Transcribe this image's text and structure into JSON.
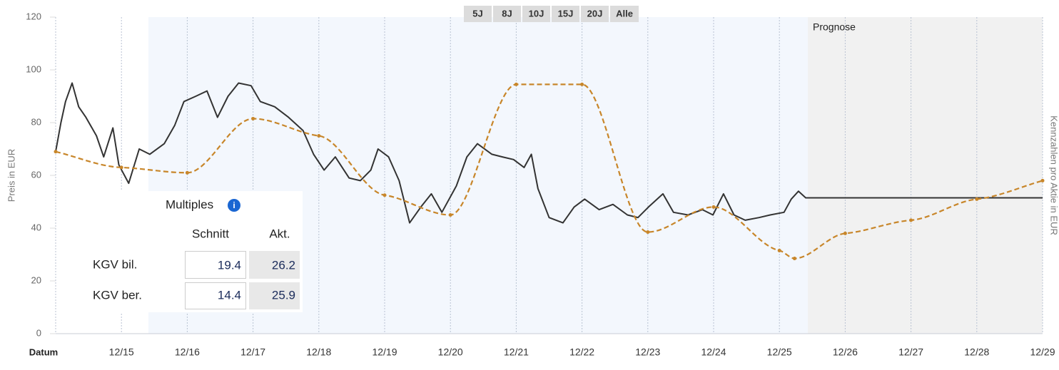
{
  "chart_data": {
    "type": "line",
    "ylabel": "Preis in EUR",
    "y2label": "Kennzahlen pro Aktie in EUR",
    "xlabel": "Datum",
    "forecast_label": "Prognose",
    "ranges": [
      "5J",
      "8J",
      "10J",
      "15J",
      "20J",
      "Alle"
    ],
    "xlim": [
      2014,
      2029
    ],
    "xticks": [
      {
        "value": 2015,
        "label": "12/15"
      },
      {
        "value": 2016,
        "label": "12/16"
      },
      {
        "value": 2017,
        "label": "12/17"
      },
      {
        "value": 2018,
        "label": "12/18"
      },
      {
        "value": 2019,
        "label": "12/19"
      },
      {
        "value": 2020,
        "label": "12/20"
      },
      {
        "value": 2021,
        "label": "12/21"
      },
      {
        "value": 2022,
        "label": "12/22"
      },
      {
        "value": 2023,
        "label": "12/23"
      },
      {
        "value": 2024,
        "label": "12/24"
      },
      {
        "value": 2025,
        "label": "12/25"
      },
      {
        "value": 2026,
        "label": "12/26"
      },
      {
        "value": 2027,
        "label": "12/27"
      },
      {
        "value": 2028,
        "label": "12/28"
      },
      {
        "value": 2029,
        "label": "12/29"
      }
    ],
    "ylim": [
      0,
      120
    ],
    "yticks": [
      0,
      20,
      40,
      60,
      80,
      100,
      120
    ],
    "series": [
      {
        "color": "#333333",
        "dashed": false,
        "dots": false,
        "x": [
          2014,
          2014.08,
          2014.15,
          2014.25,
          2014.35,
          2014.46,
          2014.62,
          2014.73,
          2014.87,
          2014.96,
          2015.11,
          2015.27,
          2015.43,
          2015.65,
          2015.81,
          2015.95,
          2016.13,
          2016.3,
          2016.46,
          2016.62,
          2016.78,
          2016.97,
          2017.11,
          2017.33,
          2017.54,
          2017.76,
          2017.92,
          2018.08,
          2018.25,
          2018.46,
          2018.63,
          2018.79,
          2018.9,
          2019.06,
          2019.22,
          2019.38,
          2019.55,
          2019.71,
          2019.87,
          2020.09,
          2020.25,
          2020.41,
          2020.63,
          2020.79,
          2020.96,
          2021.12,
          2021.23,
          2021.33,
          2021.5,
          2021.71,
          2021.88,
          2022.04,
          2022.26,
          2022.47,
          2022.69,
          2022.85,
          2023.01,
          2023.23,
          2023.39,
          2023.61,
          2023.83,
          2023.99,
          2024.15,
          2024.31,
          2024.48,
          2024.69,
          2024.86,
          2025.07,
          2025.18,
          2025.29,
          2025.4,
          2029
        ],
        "values": [
          69,
          80,
          88,
          95,
          86,
          82,
          75,
          67,
          78,
          64,
          57,
          70,
          68,
          72,
          79,
          88,
          90,
          92,
          82,
          90,
          95,
          94,
          88,
          86,
          82,
          77,
          68,
          62,
          67,
          59,
          58,
          62,
          70,
          67,
          58,
          42,
          48,
          53,
          46,
          56,
          67,
          72,
          68,
          67,
          66,
          63,
          68,
          55,
          44,
          42,
          48,
          51,
          47,
          49,
          45,
          44,
          48,
          53,
          46,
          45,
          47,
          45,
          53,
          45,
          43,
          44,
          45,
          46,
          51,
          54,
          51.5,
          51.5
        ]
      },
      {
        "color": "#c8862a",
        "dashed": true,
        "dots": true,
        "x": [
          2014,
          2015,
          2016,
          2017,
          2018,
          2019,
          2020,
          2021,
          2022,
          2023,
          2024,
          2025,
          2025.23,
          2026,
          2027,
          2028,
          2029
        ],
        "values": [
          69,
          63,
          61,
          81.5,
          75,
          52.5,
          45,
          94.5,
          94.5,
          38.5,
          48,
          31.5,
          28.5,
          38,
          43,
          51,
          58
        ]
      }
    ]
  },
  "multiples": {
    "title": "Multiples",
    "columns": [
      "Schnitt",
      "Akt."
    ],
    "rows": [
      {
        "label": "KGV bil.",
        "values": [
          "19.4",
          "26.2"
        ]
      },
      {
        "label": "KGV ber.",
        "values": [
          "14.4",
          "25.9"
        ]
      }
    ]
  }
}
